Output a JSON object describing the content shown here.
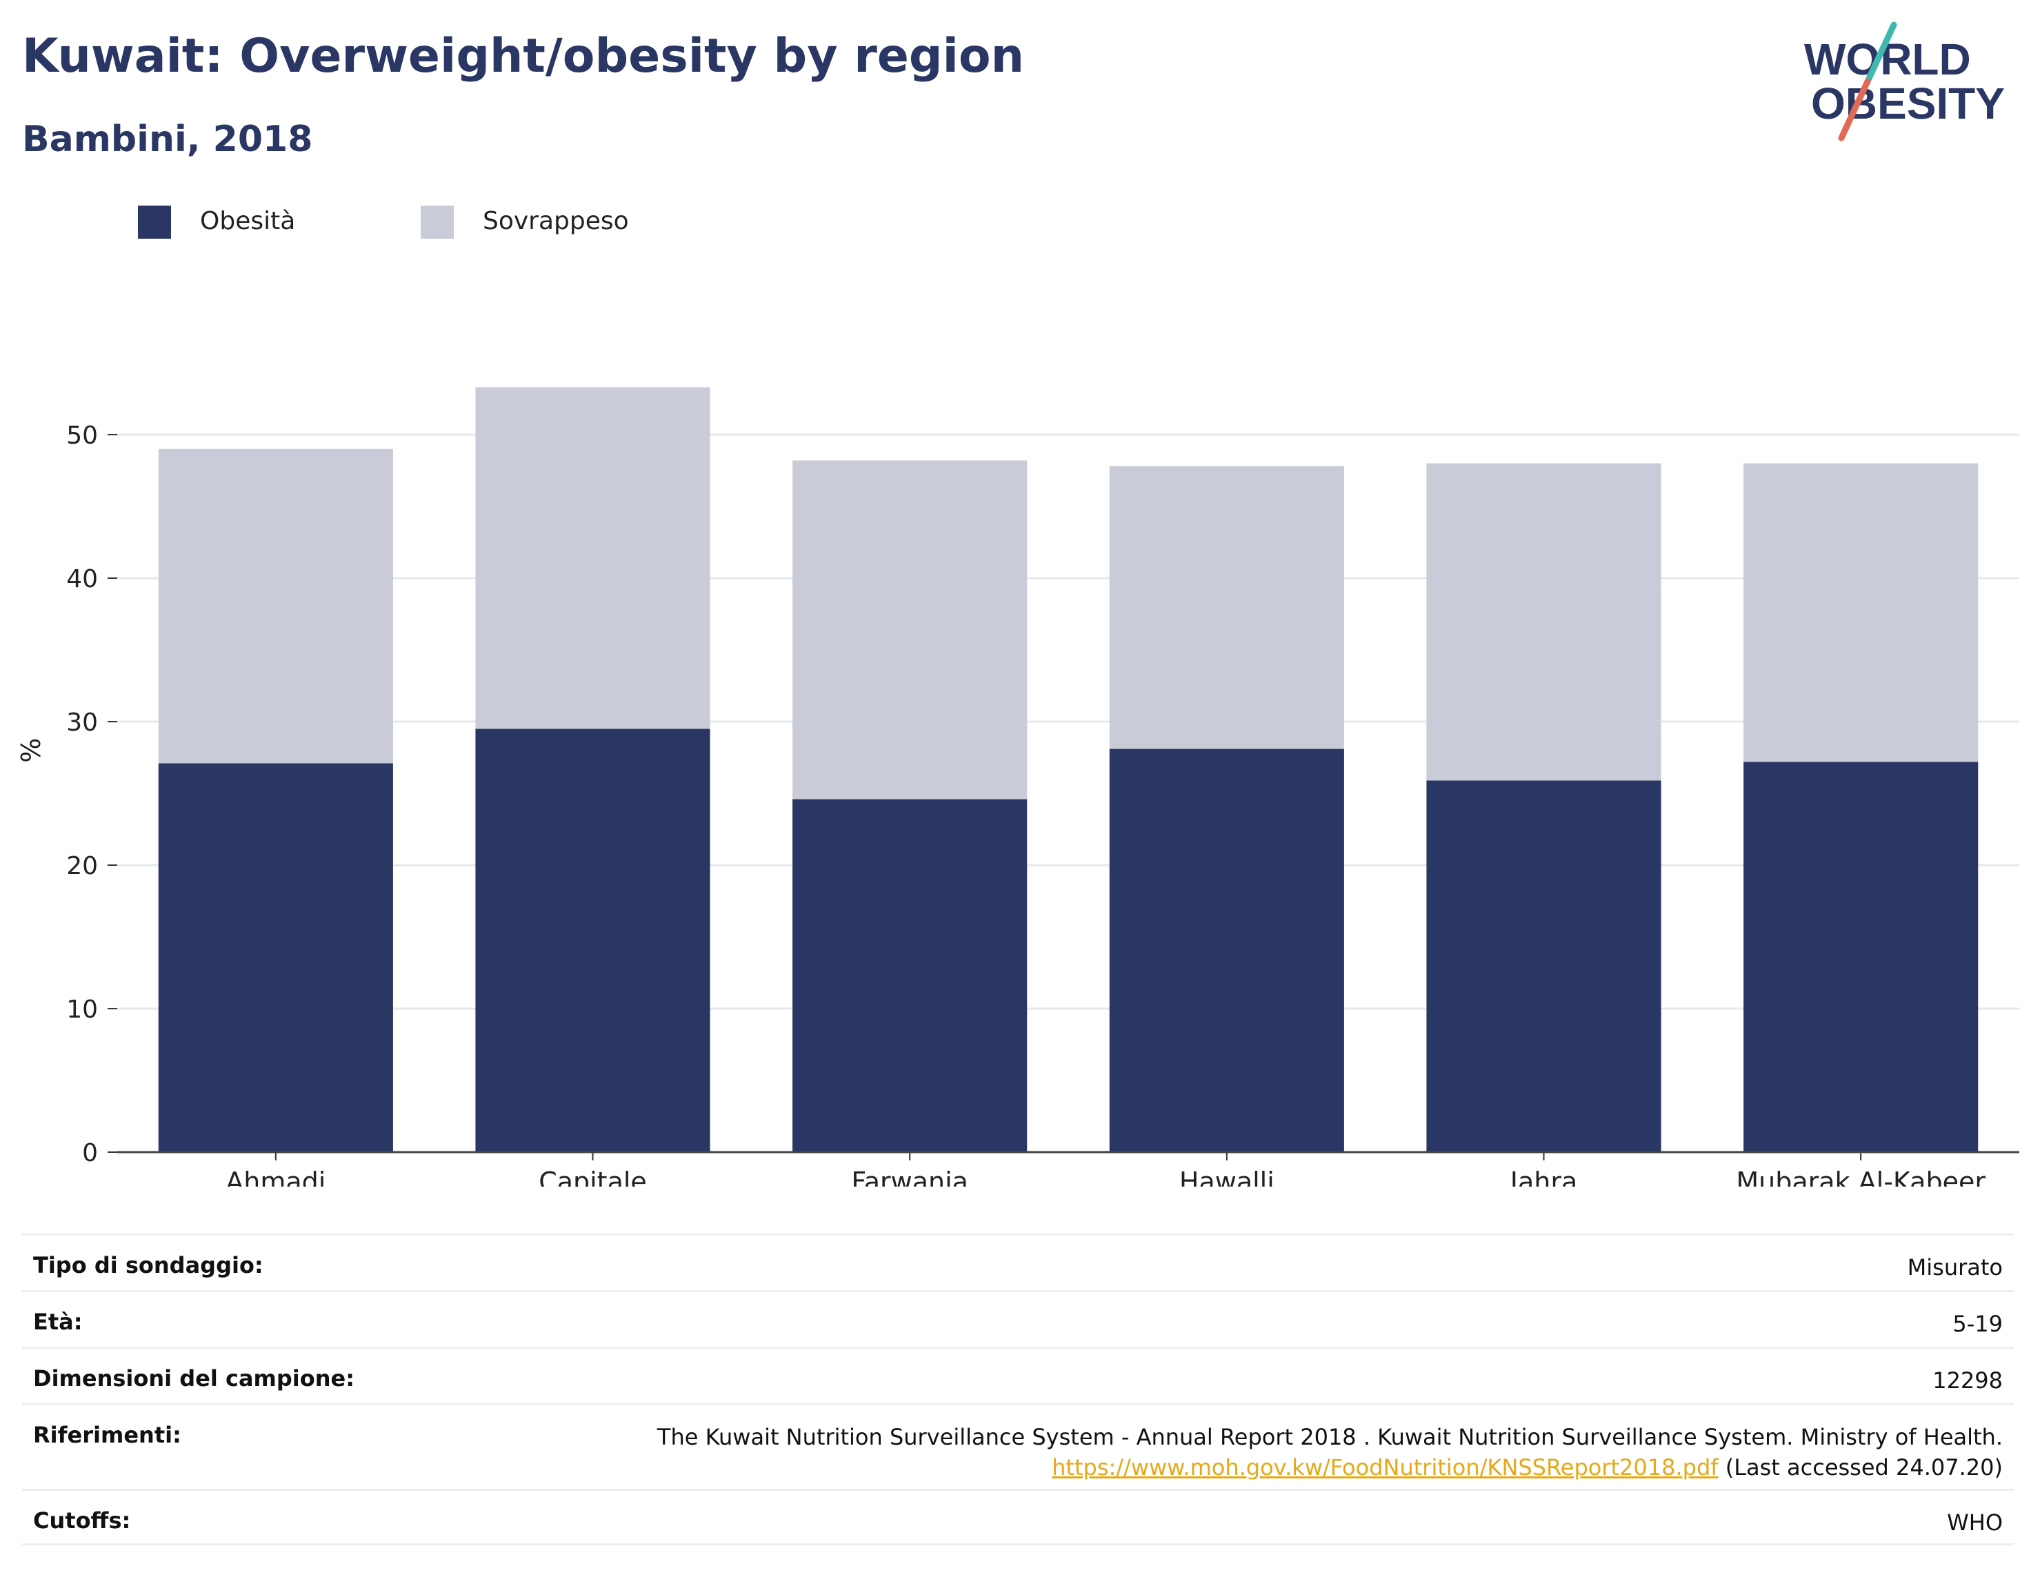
{
  "header": {
    "title": "Kuwait: Overweight/obesity by region",
    "subtitle": "Bambini, 2018"
  },
  "logo": {
    "line1": "WORLD",
    "line2": "OBESITY",
    "accent_colors": [
      "#3fb8b0",
      "#e06a55"
    ],
    "text_color": "#2a3663"
  },
  "legend": [
    {
      "name": "Obesità",
      "color": "#2a3663"
    },
    {
      "name": "Sovrappeso",
      "color": "#c9ccd8"
    }
  ],
  "chart_data": {
    "type": "bar",
    "stacked": true,
    "categories": [
      "Ahmadi",
      "Capitale",
      "Farwania",
      "Hawalli",
      "Jahra",
      "Mubarak Al-Kabeer"
    ],
    "series": [
      {
        "name": "Obesità",
        "values": [
          27.1,
          29.5,
          24.6,
          28.1,
          25.9,
          27.2
        ],
        "color": "#2a3663"
      },
      {
        "name": "Sovrappeso",
        "values": [
          21.9,
          23.8,
          23.6,
          19.7,
          22.1,
          20.8
        ],
        "color": "#c9ccd8"
      }
    ],
    "totals": [
      49.0,
      53.3,
      48.2,
      47.8,
      48.0,
      48.0
    ],
    "ylabel": "%",
    "ylim": [
      0,
      58
    ],
    "yticks": [
      0,
      10,
      20,
      30,
      40,
      50
    ],
    "grid": true,
    "legend_position": "top-left"
  },
  "info": {
    "survey_type": {
      "label": "Tipo di sondaggio:",
      "value": "Misurato"
    },
    "age": {
      "label": "Età:",
      "value": "5-19"
    },
    "sample_size": {
      "label": "Dimensioni del campione:",
      "value": "12298"
    },
    "references": {
      "label": "Riferimenti:",
      "text": "The Kuwait Nutrition Surveillance System - Annual Report 2018 . Kuwait Nutrition Surveillance System. Ministry of Health.",
      "link": "https://www.moh.gov.kw/FoodNutrition/KNSSReport2018.pdf",
      "accessed": "(Last accessed 24.07.20)"
    },
    "cutoffs": {
      "label": "Cutoffs:",
      "value": "WHO"
    }
  }
}
